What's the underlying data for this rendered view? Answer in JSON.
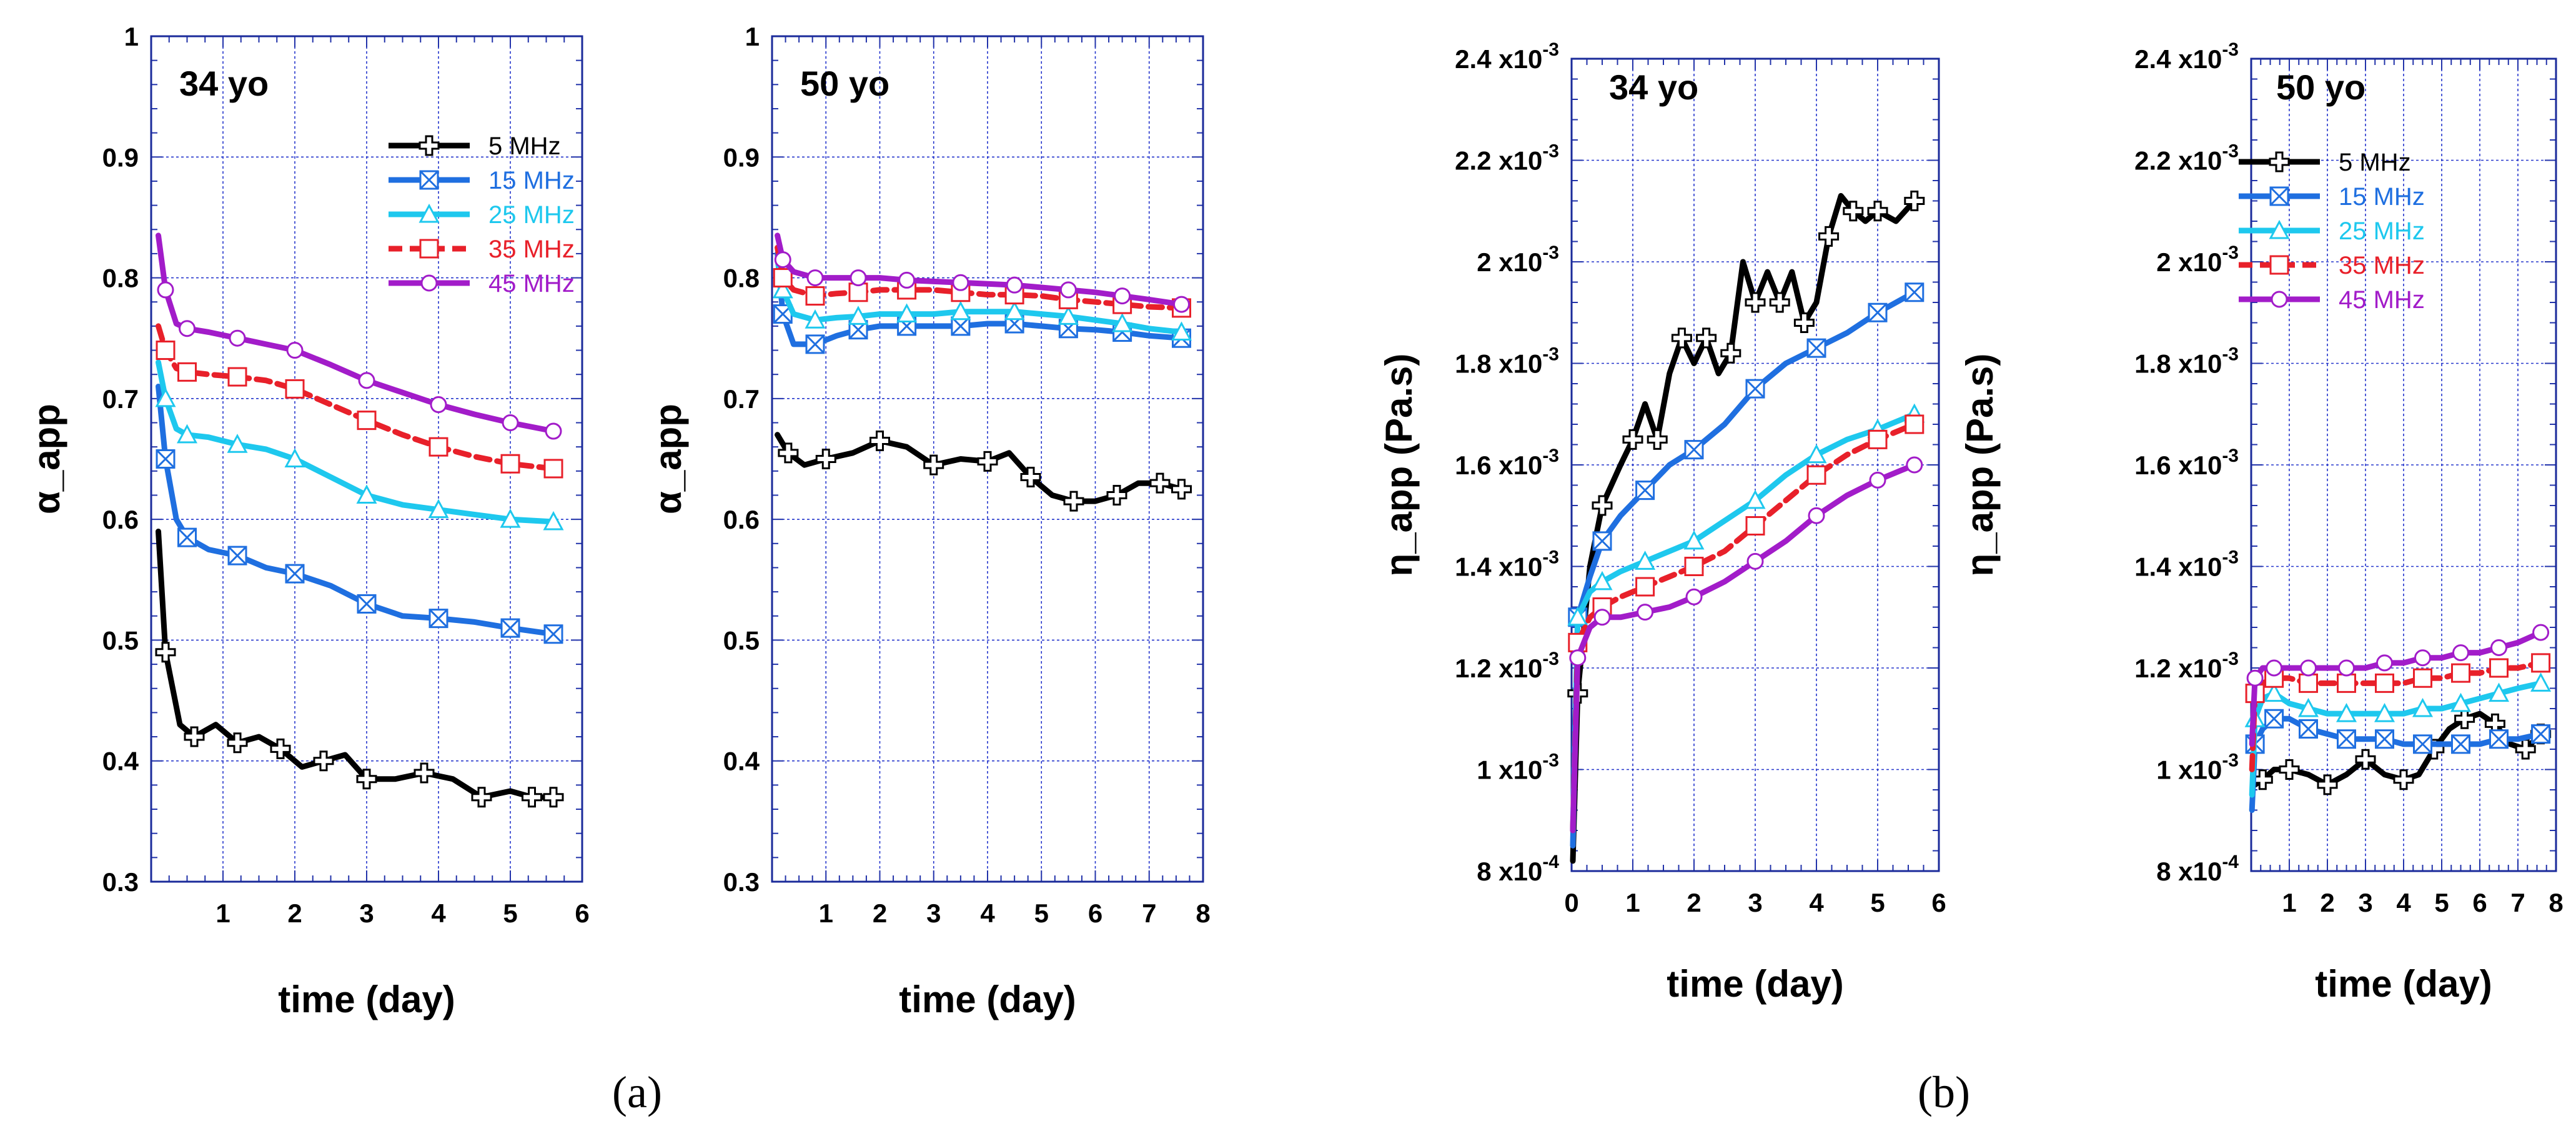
{
  "figure": {
    "caption_a": "(a)",
    "caption_b": "(b)"
  },
  "legend_items": [
    {
      "label": "5 MHz",
      "color": "#000000",
      "marker": "plus"
    },
    {
      "label": "15 MHz",
      "color": "#1f6fe0",
      "marker": "box-x"
    },
    {
      "label": "25 MHz",
      "color": "#1ec8ee",
      "marker": "triangle"
    },
    {
      "label": "35 MHz",
      "color": "#e8202a",
      "marker": "square"
    },
    {
      "label": "45 MHz",
      "color": "#a21cc9",
      "marker": "circle"
    }
  ],
  "chart_data": [
    {
      "type": "line",
      "title": "34 yo",
      "xlabel": "time (day)",
      "ylabel": "α_app",
      "xlim": [
        0,
        6
      ],
      "ylim": [
        0.3,
        1
      ],
      "xticks": [
        1,
        2,
        3,
        4,
        5,
        6
      ],
      "yticks": [
        0.3,
        0.4,
        0.5,
        0.6,
        0.7,
        0.8,
        0.9,
        1
      ],
      "ytick_labels": [
        "0.3",
        "0.4",
        "0.5",
        "0.6",
        "0.7",
        "0.8",
        "0.9",
        "1"
      ],
      "xtick_labels": [
        "1",
        "2",
        "3",
        "4",
        "5",
        "6"
      ],
      "grid": true,
      "legend": "top-right",
      "series": [
        {
          "name": "5 MHz",
          "x": [
            0.1,
            0.2,
            0.4,
            0.6,
            0.9,
            1.2,
            1.5,
            1.8,
            2.1,
            2.4,
            2.7,
            3.0,
            3.4,
            3.8,
            4.2,
            4.6,
            5.0,
            5.3,
            5.6
          ],
          "y": [
            0.59,
            0.49,
            0.43,
            0.42,
            0.43,
            0.415,
            0.42,
            0.41,
            0.395,
            0.4,
            0.405,
            0.385,
            0.385,
            0.39,
            0.385,
            0.37,
            0.375,
            0.37,
            0.37
          ]
        },
        {
          "name": "15 MHz",
          "x": [
            0.1,
            0.2,
            0.35,
            0.5,
            0.8,
            1.2,
            1.6,
            2.0,
            2.5,
            3.0,
            3.5,
            4.0,
            4.5,
            5.0,
            5.6
          ],
          "y": [
            0.71,
            0.65,
            0.6,
            0.585,
            0.575,
            0.57,
            0.56,
            0.555,
            0.545,
            0.53,
            0.52,
            0.518,
            0.515,
            0.51,
            0.505
          ]
        },
        {
          "name": "25 MHz",
          "x": [
            0.1,
            0.2,
            0.35,
            0.5,
            0.8,
            1.2,
            1.6,
            2.0,
            2.5,
            3.0,
            3.5,
            4.0,
            4.5,
            5.0,
            5.6
          ],
          "y": [
            0.73,
            0.7,
            0.675,
            0.67,
            0.668,
            0.662,
            0.658,
            0.65,
            0.635,
            0.62,
            0.612,
            0.608,
            0.604,
            0.6,
            0.598
          ]
        },
        {
          "name": "35 MHz",
          "x": [
            0.1,
            0.2,
            0.35,
            0.5,
            0.8,
            1.2,
            1.6,
            2.0,
            2.5,
            3.0,
            3.5,
            4.0,
            4.5,
            5.0,
            5.6
          ],
          "y": [
            0.76,
            0.74,
            0.725,
            0.722,
            0.72,
            0.718,
            0.715,
            0.708,
            0.695,
            0.682,
            0.67,
            0.66,
            0.652,
            0.646,
            0.642
          ]
        },
        {
          "name": "45 MHz",
          "x": [
            0.1,
            0.2,
            0.35,
            0.5,
            0.8,
            1.2,
            1.6,
            2.0,
            2.5,
            3.0,
            3.5,
            4.0,
            4.5,
            5.0,
            5.6
          ],
          "y": [
            0.835,
            0.79,
            0.762,
            0.758,
            0.755,
            0.75,
            0.745,
            0.74,
            0.728,
            0.715,
            0.705,
            0.695,
            0.687,
            0.68,
            0.673
          ]
        }
      ]
    },
    {
      "type": "line",
      "title": "50 yo",
      "xlabel": "time (day)",
      "ylabel": "α_app",
      "xlim": [
        0,
        8
      ],
      "ylim": [
        0.3,
        1
      ],
      "xticks": [
        1,
        2,
        3,
        4,
        5,
        6,
        7,
        8
      ],
      "xtick_labels": [
        "1",
        "2",
        "3",
        "4",
        "5",
        "6",
        "7",
        "8"
      ],
      "yticks": [
        0.3,
        0.4,
        0.5,
        0.6,
        0.7,
        0.8,
        0.9,
        1
      ],
      "ytick_labels": [
        "0.3",
        "0.4",
        "0.5",
        "0.6",
        "0.7",
        "0.8",
        "0.9",
        "1"
      ],
      "grid": true,
      "legend": "none",
      "series": [
        {
          "name": "5 MHz",
          "x": [
            0.1,
            0.3,
            0.6,
            1.0,
            1.5,
            2.0,
            2.5,
            3.0,
            3.5,
            4.0,
            4.4,
            4.8,
            5.2,
            5.6,
            6.0,
            6.4,
            6.8,
            7.2,
            7.6
          ],
          "y": [
            0.67,
            0.655,
            0.645,
            0.65,
            0.655,
            0.665,
            0.66,
            0.645,
            0.65,
            0.648,
            0.655,
            0.635,
            0.62,
            0.615,
            0.615,
            0.62,
            0.63,
            0.63,
            0.625
          ]
        },
        {
          "name": "15 MHz",
          "x": [
            0.1,
            0.2,
            0.4,
            0.8,
            1.2,
            1.6,
            2.0,
            2.5,
            3.0,
            3.5,
            4.0,
            4.5,
            5.0,
            5.5,
            6.0,
            6.5,
            7.0,
            7.6
          ],
          "y": [
            0.82,
            0.77,
            0.745,
            0.745,
            0.752,
            0.757,
            0.76,
            0.76,
            0.76,
            0.76,
            0.762,
            0.762,
            0.76,
            0.758,
            0.757,
            0.755,
            0.752,
            0.75
          ]
        },
        {
          "name": "25 MHz",
          "x": [
            0.1,
            0.2,
            0.4,
            0.8,
            1.2,
            1.6,
            2.0,
            2.5,
            3.0,
            3.5,
            4.0,
            4.5,
            5.0,
            5.5,
            6.0,
            6.5,
            7.0,
            7.6
          ],
          "y": [
            0.815,
            0.79,
            0.77,
            0.765,
            0.767,
            0.768,
            0.77,
            0.77,
            0.77,
            0.772,
            0.772,
            0.772,
            0.77,
            0.768,
            0.765,
            0.762,
            0.758,
            0.755
          ]
        },
        {
          "name": "35 MHz",
          "x": [
            0.1,
            0.2,
            0.4,
            0.8,
            1.2,
            1.6,
            2.0,
            2.5,
            3.0,
            3.5,
            4.0,
            4.5,
            5.0,
            5.5,
            6.0,
            6.5,
            7.0,
            7.6
          ],
          "y": [
            0.825,
            0.8,
            0.79,
            0.785,
            0.787,
            0.788,
            0.79,
            0.79,
            0.79,
            0.788,
            0.786,
            0.786,
            0.785,
            0.782,
            0.78,
            0.778,
            0.776,
            0.775
          ]
        },
        {
          "name": "45 MHz",
          "x": [
            0.1,
            0.2,
            0.4,
            0.8,
            1.2,
            1.6,
            2.0,
            2.5,
            3.0,
            3.5,
            4.0,
            4.5,
            5.0,
            5.5,
            6.0,
            6.5,
            7.0,
            7.6
          ],
          "y": [
            0.835,
            0.815,
            0.805,
            0.8,
            0.8,
            0.8,
            0.8,
            0.798,
            0.797,
            0.796,
            0.795,
            0.794,
            0.792,
            0.79,
            0.788,
            0.785,
            0.782,
            0.778
          ]
        }
      ]
    },
    {
      "type": "line",
      "title": "34 yo",
      "xlabel": "time (day)",
      "ylabel": "η_app (Pa.s)",
      "xlim": [
        0,
        6
      ],
      "ylim": [
        0.0008,
        0.0024
      ],
      "xticks": [
        0,
        1,
        2,
        3,
        4,
        5,
        6
      ],
      "xtick_labels": [
        "0",
        "1",
        "2",
        "3",
        "4",
        "5",
        "6"
      ],
      "yticks": [
        0.0008,
        0.001,
        0.0012,
        0.0014,
        0.0016,
        0.0018,
        0.002,
        0.0022,
        0.0024
      ],
      "ytick_labels": [
        "8 x10",
        "1 x10",
        "1.2 x10",
        "1.4 x10",
        "1.6 x10",
        "1.8 x10",
        "2 x10",
        "2.2 x10",
        "2.4 x10"
      ],
      "ytick_exponents": [
        "-4",
        "-3",
        "-3",
        "-3",
        "-3",
        "-3",
        "-3",
        "-3",
        "-3"
      ],
      "grid": true,
      "legend": "none",
      "series": [
        {
          "name": "5 MHz",
          "x": [
            0.02,
            0.1,
            0.3,
            0.5,
            0.8,
            1.0,
            1.2,
            1.4,
            1.6,
            1.8,
            2.0,
            2.2,
            2.4,
            2.6,
            2.8,
            3.0,
            3.2,
            3.4,
            3.6,
            3.8,
            4.0,
            4.2,
            4.4,
            4.6,
            4.8,
            5.0,
            5.3,
            5.6
          ],
          "y": [
            0.00082,
            0.00115,
            0.0014,
            0.00152,
            0.0016,
            0.00165,
            0.00172,
            0.00165,
            0.00178,
            0.00185,
            0.0018,
            0.00185,
            0.00178,
            0.00182,
            0.002,
            0.00192,
            0.00198,
            0.00192,
            0.00198,
            0.00188,
            0.00192,
            0.00205,
            0.00213,
            0.0021,
            0.00208,
            0.0021,
            0.00208,
            0.00212
          ]
        },
        {
          "name": "15 MHz",
          "x": [
            0.02,
            0.1,
            0.3,
            0.5,
            0.8,
            1.2,
            1.6,
            2.0,
            2.5,
            3.0,
            3.5,
            4.0,
            4.5,
            5.0,
            5.6
          ],
          "y": [
            0.00085,
            0.0013,
            0.00138,
            0.00145,
            0.0015,
            0.00155,
            0.0016,
            0.00163,
            0.00168,
            0.00175,
            0.0018,
            0.00183,
            0.00186,
            0.0019,
            0.00194
          ]
        },
        {
          "name": "25 MHz",
          "x": [
            0.02,
            0.1,
            0.3,
            0.5,
            0.8,
            1.2,
            1.6,
            2.0,
            2.5,
            3.0,
            3.5,
            4.0,
            4.5,
            5.0,
            5.6
          ],
          "y": [
            0.00088,
            0.0013,
            0.00135,
            0.00137,
            0.00139,
            0.00141,
            0.00143,
            0.00145,
            0.00149,
            0.00153,
            0.00158,
            0.00162,
            0.00165,
            0.00167,
            0.0017
          ]
        },
        {
          "name": "35 MHz",
          "x": [
            0.02,
            0.1,
            0.3,
            0.5,
            0.8,
            1.2,
            1.6,
            2.0,
            2.5,
            3.0,
            3.5,
            4.0,
            4.5,
            5.0,
            5.6
          ],
          "y": [
            0.00088,
            0.00125,
            0.0013,
            0.00132,
            0.00134,
            0.00136,
            0.00138,
            0.0014,
            0.00143,
            0.00148,
            0.00153,
            0.00158,
            0.00162,
            0.00165,
            0.00168
          ]
        },
        {
          "name": "45 MHz",
          "x": [
            0.02,
            0.1,
            0.3,
            0.5,
            0.8,
            1.2,
            1.6,
            2.0,
            2.5,
            3.0,
            3.5,
            4.0,
            4.5,
            5.0,
            5.6
          ],
          "y": [
            0.00088,
            0.00122,
            0.00128,
            0.0013,
            0.0013,
            0.00131,
            0.00132,
            0.00134,
            0.00137,
            0.00141,
            0.00145,
            0.0015,
            0.00154,
            0.00157,
            0.0016
          ]
        }
      ]
    },
    {
      "type": "line",
      "title": "50 yo",
      "xlabel": "time (day)",
      "ylabel": "η_app (Pa.s)",
      "xlim": [
        0,
        8
      ],
      "ylim": [
        0.0008,
        0.0024
      ],
      "xticks": [
        1,
        2,
        3,
        4,
        5,
        6,
        7,
        8
      ],
      "xtick_labels": [
        "1",
        "2",
        "3",
        "4",
        "5",
        "6",
        "7",
        "8"
      ],
      "yticks": [
        0.0008,
        0.001,
        0.0012,
        0.0014,
        0.0016,
        0.0018,
        0.002,
        0.0022,
        0.0024
      ],
      "ytick_labels": [
        "8 x10",
        "1 x10",
        "1.2 x10",
        "1.4 x10",
        "1.6 x10",
        "1.8 x10",
        "2 x10",
        "2.2 x10",
        "2.4 x10"
      ],
      "ytick_exponents": [
        "-4",
        "-3",
        "-3",
        "-3",
        "-3",
        "-3",
        "-3",
        "-3",
        "-3"
      ],
      "grid": true,
      "legend": "top-right",
      "series": [
        {
          "name": "5 MHz",
          "x": [
            0.1,
            0.3,
            0.6,
            1.0,
            1.5,
            2.0,
            2.5,
            3.0,
            3.5,
            4.0,
            4.4,
            4.8,
            5.2,
            5.6,
            6.0,
            6.4,
            6.8,
            7.2,
            7.6
          ],
          "y": [
            0.00097,
            0.00098,
            0.001,
            0.001,
            0.00099,
            0.00097,
            0.00099,
            0.00102,
            0.00099,
            0.00098,
            0.00099,
            0.00104,
            0.00108,
            0.0011,
            0.00111,
            0.00109,
            0.00105,
            0.00104,
            0.00107
          ]
        },
        {
          "name": "15 MHz",
          "x": [
            0.02,
            0.1,
            0.3,
            0.6,
            1.0,
            1.5,
            2.0,
            2.5,
            3.0,
            3.5,
            4.0,
            4.5,
            5.0,
            5.5,
            6.0,
            6.5,
            7.0,
            7.6
          ],
          "y": [
            0.00092,
            0.00105,
            0.00108,
            0.0011,
            0.0011,
            0.00108,
            0.00107,
            0.00106,
            0.00106,
            0.00106,
            0.00105,
            0.00105,
            0.00105,
            0.00105,
            0.00105,
            0.00106,
            0.00106,
            0.00107
          ]
        },
        {
          "name": "25 MHz",
          "x": [
            0.02,
            0.1,
            0.3,
            0.6,
            1.0,
            1.5,
            2.0,
            2.5,
            3.0,
            3.5,
            4.0,
            4.5,
            5.0,
            5.5,
            6.0,
            6.5,
            7.0,
            7.6
          ],
          "y": [
            0.00095,
            0.0011,
            0.00114,
            0.00115,
            0.00113,
            0.00112,
            0.00111,
            0.00111,
            0.00111,
            0.00111,
            0.00111,
            0.00112,
            0.00112,
            0.00113,
            0.00114,
            0.00115,
            0.00116,
            0.00117
          ]
        },
        {
          "name": "35 MHz",
          "x": [
            0.02,
            0.1,
            0.3,
            0.6,
            1.0,
            1.5,
            2.0,
            2.5,
            3.0,
            3.5,
            4.0,
            4.5,
            5.0,
            5.5,
            6.0,
            6.5,
            7.0,
            7.6
          ],
          "y": [
            0.001,
            0.00115,
            0.00117,
            0.00118,
            0.00118,
            0.00117,
            0.00117,
            0.00117,
            0.00117,
            0.00117,
            0.00117,
            0.00118,
            0.00118,
            0.00119,
            0.00119,
            0.0012,
            0.0012,
            0.00121
          ]
        },
        {
          "name": "45 MHz",
          "x": [
            0.02,
            0.1,
            0.3,
            0.6,
            1.0,
            1.5,
            2.0,
            2.5,
            3.0,
            3.5,
            4.0,
            4.5,
            5.0,
            5.5,
            6.0,
            6.5,
            7.0,
            7.6
          ],
          "y": [
            0.00105,
            0.00118,
            0.0012,
            0.0012,
            0.0012,
            0.0012,
            0.0012,
            0.0012,
            0.0012,
            0.00121,
            0.00121,
            0.00122,
            0.00122,
            0.00123,
            0.00123,
            0.00124,
            0.00125,
            0.00127
          ]
        }
      ]
    }
  ]
}
